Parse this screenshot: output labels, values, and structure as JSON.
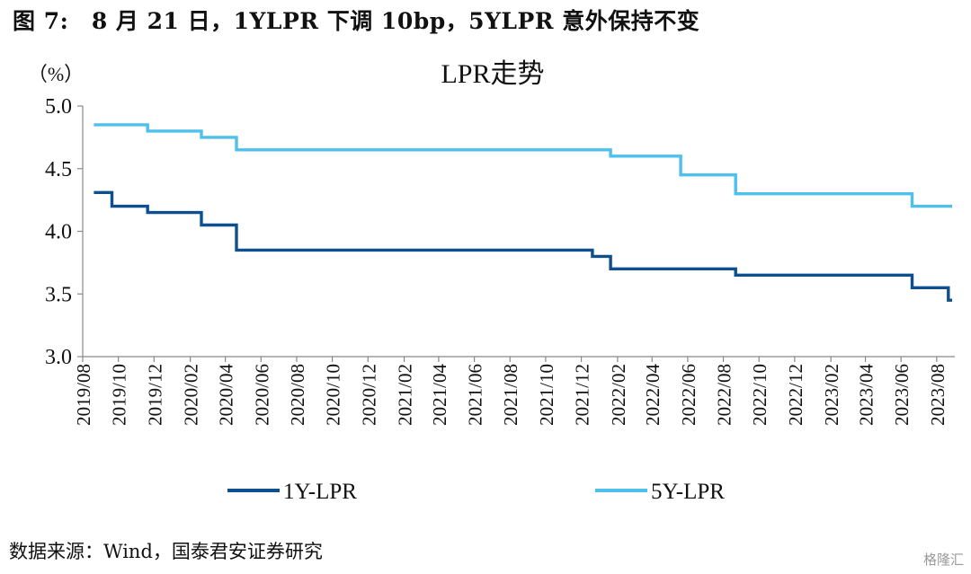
{
  "figure_title": "图 7:　8 月 21 日，1YLPR 下调 10bp，5YLPR 意外保持不变",
  "source_note": "数据来源：Wind，国泰君安证券研究",
  "watermark": "格隆汇",
  "chart_data": {
    "type": "line",
    "title": "LPR走势",
    "ylabel": "（%）",
    "xlabel": "",
    "ylim": [
      3.0,
      5.0
    ],
    "yticks": [
      "5.0",
      "4.5",
      "4.0",
      "3.5",
      "3.0"
    ],
    "ytick_values": [
      5.0,
      4.5,
      4.0,
      3.5,
      3.0
    ],
    "xlim": [
      "2019-08-01",
      "2023-09-01"
    ],
    "xtick_labels": [
      "2019/08",
      "2019/10",
      "2019/12",
      "2020/02",
      "2020/04",
      "2020/06",
      "2020/08",
      "2020/10",
      "2020/12",
      "2021/02",
      "2021/04",
      "2021/06",
      "2021/08",
      "2021/10",
      "2021/12",
      "2022/02",
      "2022/04",
      "2022/06",
      "2022/08",
      "2022/10",
      "2022/12",
      "2023/02",
      "2023/04",
      "2023/06",
      "2023/08"
    ],
    "legend_position": "bottom",
    "grid": false,
    "series": [
      {
        "name": "1Y-LPR",
        "color": "#0e4f8f",
        "points": [
          [
            "2019-08-20",
            4.31
          ],
          [
            "2019-09-20",
            4.2
          ],
          [
            "2019-11-20",
            4.15
          ],
          [
            "2020-02-20",
            4.05
          ],
          [
            "2020-04-20",
            3.85
          ],
          [
            "2021-12-20",
            3.8
          ],
          [
            "2022-01-20",
            3.7
          ],
          [
            "2022-08-22",
            3.65
          ],
          [
            "2023-06-20",
            3.55
          ],
          [
            "2023-08-21",
            3.45
          ]
        ]
      },
      {
        "name": "5Y-LPR",
        "color": "#4dc0ec",
        "points": [
          [
            "2019-08-20",
            4.85
          ],
          [
            "2019-11-20",
            4.8
          ],
          [
            "2020-02-20",
            4.75
          ],
          [
            "2020-04-20",
            4.65
          ],
          [
            "2022-01-20",
            4.6
          ],
          [
            "2022-05-20",
            4.45
          ],
          [
            "2022-08-22",
            4.3
          ],
          [
            "2023-06-20",
            4.2
          ],
          [
            "2023-08-21",
            4.2
          ]
        ]
      }
    ]
  }
}
